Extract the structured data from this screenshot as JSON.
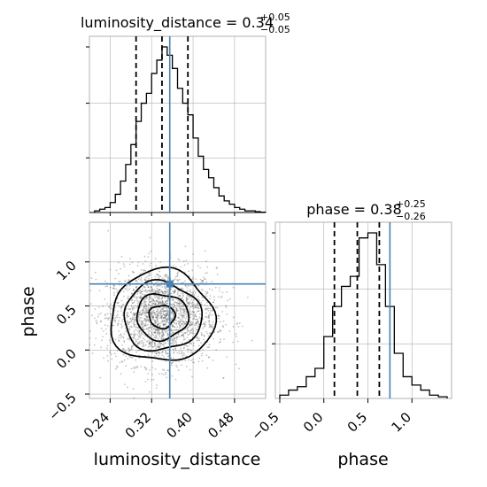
{
  "chart_data": {
    "type": "corner",
    "parameters": [
      "luminosity_distance",
      "phase"
    ],
    "truths": {
      "luminosity_distance": 0.355,
      "phase": 0.75
    },
    "panels": [
      {
        "id": "hist_luminosity_distance",
        "type": "histogram",
        "parameter": "luminosity_distance",
        "title": {
          "prefix": "luminosity_distance = ",
          "value": "0.34",
          "plus": "+0.05",
          "minus": "−0.05"
        },
        "xlim": [
          0.2,
          0.54
        ],
        "bin_edges": [
          0.21,
          0.22,
          0.23,
          0.24,
          0.25,
          0.26,
          0.27,
          0.28,
          0.29,
          0.3,
          0.31,
          0.32,
          0.33,
          0.34,
          0.35,
          0.36,
          0.37,
          0.38,
          0.39,
          0.4,
          0.41,
          0.42,
          0.43,
          0.44,
          0.45,
          0.46,
          0.47,
          0.48,
          0.49,
          0.5,
          0.51,
          0.52,
          0.53,
          0.54
        ],
        "counts": [
          0.01,
          0.02,
          0.03,
          0.06,
          0.11,
          0.19,
          0.29,
          0.41,
          0.55,
          0.66,
          0.72,
          0.84,
          0.92,
          1.0,
          0.95,
          0.87,
          0.75,
          0.66,
          0.59,
          0.45,
          0.34,
          0.26,
          0.21,
          0.15,
          0.1,
          0.07,
          0.05,
          0.03,
          0.02,
          0.01,
          0.01,
          0.005,
          0.002
        ],
        "quantiles": [
          0.29,
          0.34,
          0.39
        ],
        "truth": 0.355
      },
      {
        "id": "hist_phase",
        "type": "histogram",
        "parameter": "phase",
        "title": {
          "prefix": "phase = ",
          "value": "0.38",
          "plus": "+0.25",
          "minus": "−0.26"
        },
        "xlim": [
          -0.55,
          1.45
        ],
        "xticks": [
          -0.5,
          0.0,
          0.5,
          1.0
        ],
        "xticklabels": [
          "−0.5",
          "0.0",
          "0.5",
          "1.0"
        ],
        "xlabel": "phase",
        "bin_edges": [
          -0.5,
          -0.4,
          -0.3,
          -0.2,
          -0.1,
          0.0,
          0.1,
          0.2,
          0.3,
          0.4,
          0.5,
          0.6,
          0.7,
          0.8,
          0.9,
          1.0,
          1.1,
          1.2,
          1.3,
          1.4
        ],
        "counts": [
          0.02,
          0.05,
          0.07,
          0.13,
          0.18,
          0.37,
          0.55,
          0.67,
          0.73,
          0.96,
          0.99,
          0.8,
          0.55,
          0.27,
          0.13,
          0.08,
          0.05,
          0.02,
          0.01
        ],
        "quantiles": [
          0.12,
          0.38,
          0.63
        ],
        "truth": 0.75
      },
      {
        "id": "joint_luminosity_distance_phase",
        "type": "2d-density",
        "xparameter": "luminosity_distance",
        "yparameter": "phase",
        "xlim": [
          0.2,
          0.54
        ],
        "ylim": [
          -0.55,
          1.45
        ],
        "xticks": [
          0.24,
          0.32,
          0.4,
          0.48
        ],
        "xticklabels": [
          "0.24",
          "0.32",
          "0.40",
          "0.48"
        ],
        "yticks": [
          -0.5,
          0.0,
          0.5,
          1.0
        ],
        "yticklabels": [
          "−0.5",
          "0.0",
          "0.5",
          "1.0"
        ],
        "xlabel": "luminosity_distance",
        "ylabel": "phase",
        "center": {
          "x": 0.34,
          "y": 0.38
        },
        "sigma": {
          "x": 0.05,
          "y": 0.26
        },
        "contour_levels_sigma": [
          0.5,
          1.0,
          1.5,
          2.0
        ],
        "truth": {
          "x": 0.355,
          "y": 0.75
        }
      }
    ],
    "colors": {
      "truth": "#4682b4",
      "grid": "#b0b0b0",
      "line": "#000000"
    },
    "grid": true
  }
}
